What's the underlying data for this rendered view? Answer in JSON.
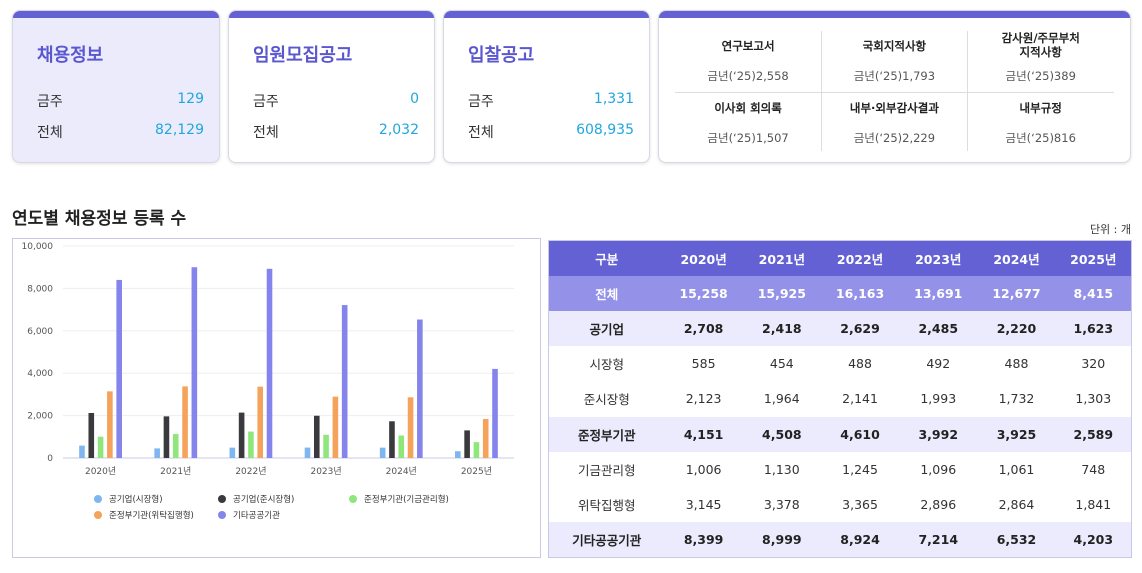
{
  "cards": [
    {
      "title": "채용정보",
      "week_label": "금주",
      "week": "129",
      "total_label": "전체",
      "total": "82,129"
    },
    {
      "title": "임원모집공고",
      "week_label": "금주",
      "week": "0",
      "total_label": "전체",
      "total": "2,032"
    },
    {
      "title": "입찰공고",
      "week_label": "금주",
      "week": "1,331",
      "total_label": "전체",
      "total": "608,935"
    }
  ],
  "summary": [
    {
      "name": "연구보고서",
      "count": "금년(‘25)2,558"
    },
    {
      "name": "국회지적사항",
      "count": "금년(‘25)1,793"
    },
    {
      "name": "감사원/주무부처\n지적사항",
      "count": "금년(‘25)389"
    },
    {
      "name": "이사회 회의록",
      "count": "금년(‘25)1,507"
    },
    {
      "name": "내부·외부감사결과",
      "count": "금년(‘25)2,229"
    },
    {
      "name": "내부규정",
      "count": "금년(‘25)816"
    }
  ],
  "section_title": "연도별 채용정보 등록 수",
  "unit": "단위 : 개",
  "table": {
    "headers": [
      "구분",
      "2020년",
      "2021년",
      "2022년",
      "2023년",
      "2024년",
      "2025년"
    ],
    "rows": [
      [
        "전체",
        "15,258",
        "15,925",
        "16,163",
        "13,691",
        "12,677",
        "8,415"
      ],
      [
        "공기업",
        "2,708",
        "2,418",
        "2,629",
        "2,485",
        "2,220",
        "1,623"
      ],
      [
        "시장형",
        "585",
        "454",
        "488",
        "492",
        "488",
        "320"
      ],
      [
        "준시장형",
        "2,123",
        "1,964",
        "2,141",
        "1,993",
        "1,732",
        "1,303"
      ],
      [
        "준정부기관",
        "4,151",
        "4,508",
        "4,610",
        "3,992",
        "3,925",
        "2,589"
      ],
      [
        "기금관리형",
        "1,006",
        "1,130",
        "1,245",
        "1,096",
        "1,061",
        "748"
      ],
      [
        "위탁집행형",
        "3,145",
        "3,378",
        "3,365",
        "2,896",
        "2,864",
        "1,841"
      ],
      [
        "기타공공기관",
        "8,399",
        "8,999",
        "8,924",
        "7,214",
        "6,532",
        "4,203"
      ]
    ]
  },
  "chart_data": {
    "type": "bar",
    "categories": [
      "2020년",
      "2021년",
      "2022년",
      "2023년",
      "2024년",
      "2025년"
    ],
    "ylim": [
      0,
      10000
    ],
    "yticks": [
      "0",
      "2,000",
      "4,000",
      "6,000",
      "8,000",
      "10,000"
    ],
    "grid": true,
    "legend": "bottom",
    "series": [
      {
        "name": "공기업(시장형)",
        "color": "#7fb6ef",
        "values": [
          585,
          454,
          488,
          492,
          488,
          320
        ]
      },
      {
        "name": "공기업(준시장형)",
        "color": "#3a3a3e",
        "values": [
          2123,
          1964,
          2141,
          1993,
          1732,
          1303
        ]
      },
      {
        "name": "준정부기관(기금관리형)",
        "color": "#8fe77c",
        "values": [
          1006,
          1130,
          1245,
          1096,
          1061,
          748
        ]
      },
      {
        "name": "준정부기관(위탁집행형)",
        "color": "#f5a35b",
        "values": [
          3145,
          3378,
          3365,
          2896,
          2864,
          1841
        ]
      },
      {
        "name": "기타공공기관",
        "color": "#8584ec",
        "values": [
          8399,
          8999,
          8924,
          7214,
          6532,
          4203
        ]
      }
    ]
  }
}
